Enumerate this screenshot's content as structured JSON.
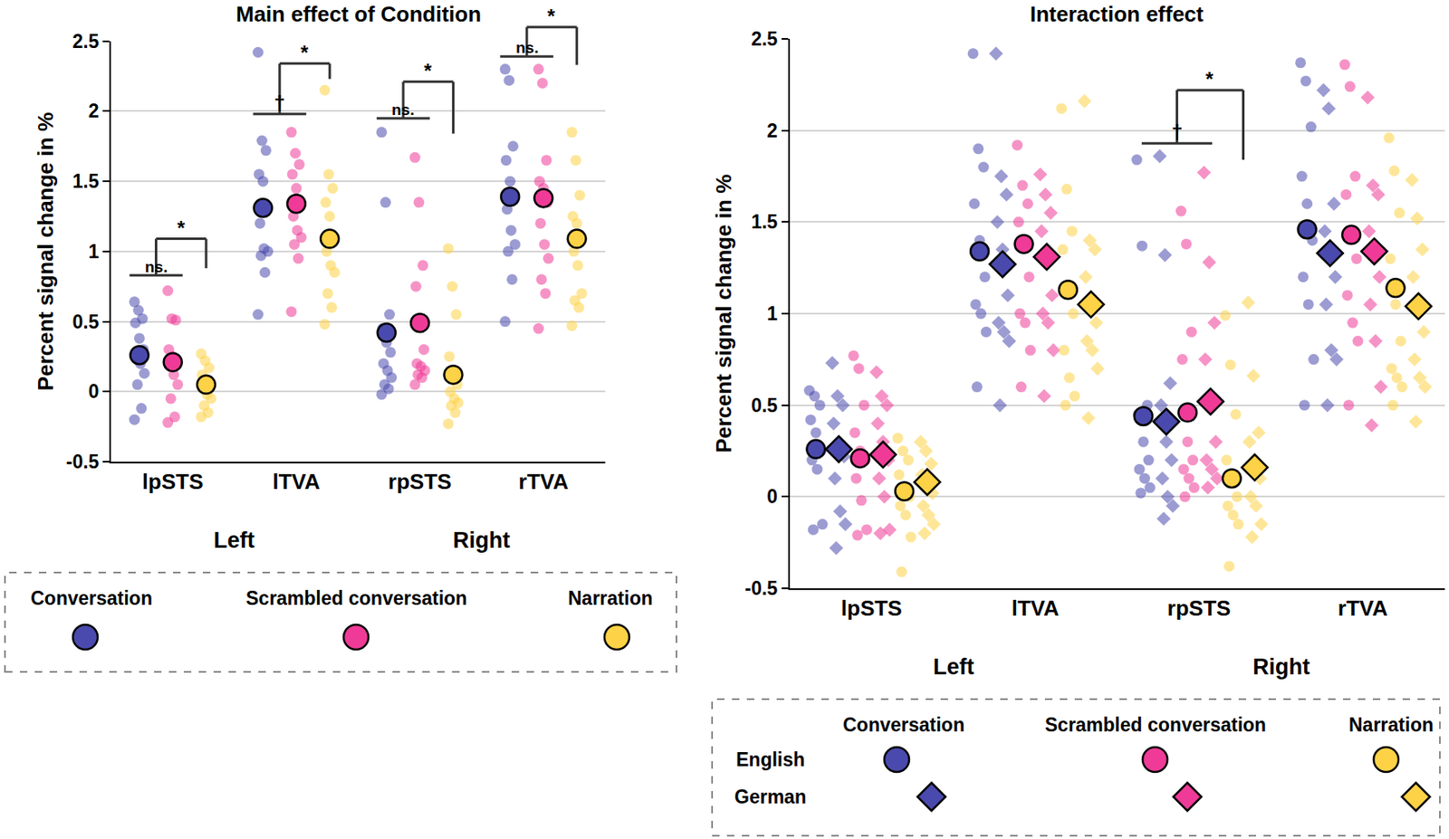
{
  "chart_data": [
    {
      "type": "scatter",
      "title": "Main effect of Condition",
      "y_label": "Percent signal change in %",
      "categories": [
        "lpSTS",
        "lTVA",
        "rpSTS",
        "rTVA"
      ],
      "category_groups": [
        {
          "label": "Left",
          "categories": [
            "lpSTS",
            "lTVA"
          ]
        },
        {
          "label": "Right",
          "categories": [
            "rpSTS",
            "rTVA"
          ]
        }
      ],
      "ylim": [
        -0.5,
        2.5
      ],
      "yticks": [
        -0.5,
        0,
        0.5,
        1,
        1.5,
        2,
        2.5
      ],
      "grid": true,
      "series": [
        {
          "name": "Conversation",
          "color": "#4a4aae",
          "marker": "circle",
          "values": [
            0.26,
            1.31,
            0.42,
            1.39
          ],
          "points": [
            [
              0.64,
              0.58,
              0.52,
              0.49,
              0.38,
              0.3,
              0.25,
              0.2,
              0.13,
              0.05,
              -0.12,
              -0.2
            ],
            [
              2.42,
              1.79,
              1.72,
              1.55,
              1.5,
              1.33,
              1.2,
              1.02,
              1.0,
              0.97,
              0.85,
              0.55
            ],
            [
              1.85,
              1.35,
              0.55,
              0.45,
              0.35,
              0.28,
              0.2,
              0.15,
              0.1,
              0.05,
              0.02,
              -0.02
            ],
            [
              2.3,
              2.22,
              1.75,
              1.65,
              1.5,
              1.4,
              1.3,
              1.15,
              1.05,
              1.0,
              0.8,
              0.5
            ]
          ]
        },
        {
          "name": "Scrambled conversation",
          "color": "#ef3b97",
          "marker": "circle",
          "values": [
            0.21,
            1.34,
            0.49,
            1.38
          ],
          "points": [
            [
              0.72,
              0.52,
              0.51,
              0.3,
              0.25,
              0.22,
              0.18,
              0.12,
              0.05,
              -0.05,
              -0.18,
              -0.22
            ],
            [
              1.85,
              1.7,
              1.62,
              1.55,
              1.45,
              1.35,
              1.25,
              1.15,
              1.1,
              1.05,
              0.95,
              0.57
            ],
            [
              1.67,
              1.35,
              0.9,
              0.75,
              0.5,
              0.3,
              0.2,
              0.18,
              0.15,
              0.12,
              0.1,
              0.05
            ],
            [
              2.3,
              2.2,
              1.65,
              1.5,
              1.45,
              1.35,
              1.2,
              1.05,
              0.95,
              0.8,
              0.7,
              0.45
            ]
          ]
        },
        {
          "name": "Narration",
          "color": "#fdd246",
          "marker": "circle",
          "values": [
            0.05,
            1.09,
            0.12,
            1.09
          ],
          "points": [
            [
              0.27,
              0.22,
              0.17,
              0.12,
              0.08,
              0.05,
              0.02,
              -0.02,
              -0.05,
              -0.1,
              -0.15,
              -0.18
            ],
            [
              2.15,
              1.55,
              1.45,
              1.35,
              1.25,
              1.1,
              1.0,
              0.9,
              0.85,
              0.7,
              0.6,
              0.48
            ],
            [
              1.02,
              0.75,
              0.55,
              0.25,
              0.15,
              0.05,
              0.0,
              -0.05,
              -0.08,
              -0.1,
              -0.15,
              -0.23
            ],
            [
              1.85,
              1.65,
              1.4,
              1.25,
              1.2,
              1.1,
              1.0,
              0.9,
              0.7,
              0.65,
              0.6,
              0.47
            ]
          ]
        }
      ],
      "comparisons": [
        {
          "category": "lpSTS",
          "between": [
            [
              "Conversation"
            ],
            [
              "Scrambled conversation"
            ]
          ],
          "y": 0.83,
          "label": "ns."
        },
        {
          "category": "lpSTS",
          "between": [
            [
              "Conversation",
              "Scrambled conversation"
            ],
            [
              "Narration"
            ]
          ],
          "y": 1.09,
          "y_end": 0.88,
          "label": "*"
        },
        {
          "category": "lTVA",
          "between": [
            [
              "Conversation"
            ],
            [
              "Scrambled conversation"
            ]
          ],
          "y": 1.98,
          "label": "†"
        },
        {
          "category": "lTVA",
          "between": [
            [
              "Conversation",
              "Scrambled conversation"
            ],
            [
              "Narration"
            ]
          ],
          "y": 2.34,
          "y_end": 2.23,
          "label": "*"
        },
        {
          "category": "rpSTS",
          "between": [
            [
              "Conversation"
            ],
            [
              "Scrambled conversation"
            ]
          ],
          "y": 1.95,
          "label": "ns."
        },
        {
          "category": "rpSTS",
          "between": [
            [
              "Conversation",
              "Scrambled conversation"
            ],
            [
              "Narration"
            ]
          ],
          "y": 2.21,
          "y_end": 1.84,
          "label": "*"
        },
        {
          "category": "rTVA",
          "between": [
            [
              "Conversation"
            ],
            [
              "Scrambled conversation"
            ]
          ],
          "y": 2.39,
          "label": "ns."
        },
        {
          "category": "rTVA",
          "between": [
            [
              "Conversation",
              "Scrambled conversation"
            ],
            [
              "Narration"
            ]
          ],
          "y": 2.6,
          "y_end": 2.33,
          "label": "*"
        }
      ]
    },
    {
      "type": "scatter",
      "title": "Interaction effect",
      "y_label": "Percent signal change in %",
      "categories": [
        "lpSTS",
        "lTVA",
        "rpSTS",
        "rTVA"
      ],
      "category_groups": [
        {
          "label": "Left",
          "categories": [
            "lpSTS",
            "lTVA"
          ]
        },
        {
          "label": "Right",
          "categories": [
            "rpSTS",
            "rTVA"
          ]
        }
      ],
      "ylim": [
        -0.5,
        2.5
      ],
      "yticks": [
        -0.5,
        0,
        0.5,
        1,
        1.5,
        2,
        2.5
      ],
      "grid": true,
      "languages": [
        {
          "name": "English",
          "marker": "circle"
        },
        {
          "name": "German",
          "marker": "diamond"
        }
      ],
      "series": [
        {
          "name": "Conversation",
          "language": "English",
          "color": "#4a4aae",
          "marker": "circle",
          "values": [
            0.26,
            1.34,
            0.44,
            1.46
          ],
          "points": [
            [
              0.58,
              0.55,
              0.5,
              0.42,
              0.35,
              0.25,
              0.2,
              0.15,
              -0.15,
              -0.18
            ],
            [
              2.42,
              1.9,
              1.8,
              1.6,
              1.4,
              1.2,
              1.05,
              1.0,
              0.9,
              0.6
            ],
            [
              1.84,
              1.37,
              0.5,
              0.45,
              0.3,
              0.2,
              0.15,
              0.1,
              0.05,
              0.02
            ],
            [
              2.37,
              2.27,
              2.02,
              1.75,
              1.6,
              1.4,
              1.2,
              1.05,
              0.75,
              0.5
            ]
          ]
        },
        {
          "name": "Conversation",
          "language": "German",
          "color": "#4a4aae",
          "marker": "diamond",
          "values": [
            0.26,
            1.27,
            0.41,
            1.33
          ],
          "points": [
            [
              0.73,
              0.55,
              0.5,
              0.4,
              0.3,
              0.22,
              0.1,
              -0.08,
              -0.15,
              -0.28
            ],
            [
              2.42,
              1.75,
              1.65,
              1.5,
              1.35,
              1.1,
              0.95,
              0.9,
              0.85,
              0.5
            ],
            [
              1.86,
              1.32,
              0.62,
              0.5,
              0.3,
              0.2,
              0.1,
              0.0,
              -0.05,
              -0.12
            ],
            [
              2.22,
              2.12,
              1.6,
              1.45,
              1.3,
              1.2,
              1.05,
              0.8,
              0.75,
              0.5
            ]
          ]
        },
        {
          "name": "Scrambled conversation",
          "language": "English",
          "color": "#ef3b97",
          "marker": "circle",
          "values": [
            0.21,
            1.38,
            0.46,
            1.43
          ],
          "points": [
            [
              0.77,
              0.7,
              0.5,
              0.35,
              0.25,
              0.2,
              0.1,
              -0.02,
              -0.18,
              -0.21
            ],
            [
              1.92,
              1.7,
              1.6,
              1.5,
              1.4,
              1.2,
              1.0,
              0.95,
              0.8,
              0.6
            ],
            [
              1.56,
              1.38,
              0.9,
              0.75,
              0.3,
              0.2,
              0.15,
              0.1,
              0.05,
              0.0
            ],
            [
              2.36,
              2.24,
              1.75,
              1.65,
              1.45,
              1.3,
              1.1,
              0.95,
              0.85,
              0.5
            ]
          ]
        },
        {
          "name": "Scrambled conversation",
          "language": "German",
          "color": "#ef3b97",
          "marker": "diamond",
          "values": [
            0.23,
            1.31,
            0.52,
            1.34
          ],
          "points": [
            [
              0.68,
              0.55,
              0.5,
              0.4,
              0.3,
              0.2,
              0.1,
              0.0,
              -0.18,
              -0.2
            ],
            [
              1.76,
              1.65,
              1.55,
              1.45,
              1.3,
              1.1,
              1.0,
              0.95,
              0.8,
              0.55
            ],
            [
              1.77,
              1.28,
              0.95,
              0.75,
              0.5,
              0.3,
              0.2,
              0.15,
              0.1,
              0.05
            ],
            [
              2.18,
              1.7,
              1.65,
              1.45,
              1.3,
              1.2,
              1.05,
              0.85,
              0.6,
              0.39
            ]
          ]
        },
        {
          "name": "Narration",
          "language": "English",
          "color": "#fdd246",
          "marker": "circle",
          "values": [
            0.03,
            1.13,
            0.1,
            1.14
          ],
          "points": [
            [
              0.32,
              0.25,
              0.2,
              0.12,
              0.05,
              0.0,
              -0.05,
              -0.1,
              -0.22,
              -0.41
            ],
            [
              2.12,
              1.68,
              1.45,
              1.35,
              1.15,
              1.0,
              0.8,
              0.65,
              0.55,
              0.5
            ],
            [
              0.99,
              0.72,
              0.45,
              0.2,
              0.1,
              0.0,
              -0.05,
              -0.1,
              -0.15,
              -0.38
            ],
            [
              1.96,
              1.78,
              1.55,
              1.3,
              1.05,
              0.85,
              0.7,
              0.65,
              0.6,
              0.5
            ]
          ]
        },
        {
          "name": "Narration",
          "language": "German",
          "color": "#fdd246",
          "marker": "diamond",
          "values": [
            0.08,
            1.05,
            0.16,
            1.04
          ],
          "points": [
            [
              0.3,
              0.25,
              0.18,
              0.12,
              0.08,
              0.02,
              -0.05,
              -0.1,
              -0.15,
              -0.2
            ],
            [
              2.16,
              1.4,
              1.35,
              1.2,
              1.05,
              0.95,
              0.85,
              0.8,
              0.7,
              0.43
            ],
            [
              1.06,
              0.66,
              0.35,
              0.3,
              0.2,
              0.1,
              0.0,
              -0.05,
              -0.15,
              -0.22
            ],
            [
              1.73,
              1.52,
              1.35,
              1.2,
              1.05,
              0.9,
              0.75,
              0.65,
              0.6,
              0.41
            ]
          ]
        }
      ],
      "comparisons": [
        {
          "category": "rpSTS",
          "between": [
            [
              "Conversation"
            ],
            [
              "Scrambled conversation"
            ]
          ],
          "y": 1.93,
          "label": "†"
        },
        {
          "category": "rpSTS",
          "between": [
            [
              "Conversation",
              "Scrambled conversation"
            ],
            [
              "Narration"
            ]
          ],
          "y": 2.22,
          "y_end": 1.84,
          "label": "*"
        }
      ]
    }
  ]
}
